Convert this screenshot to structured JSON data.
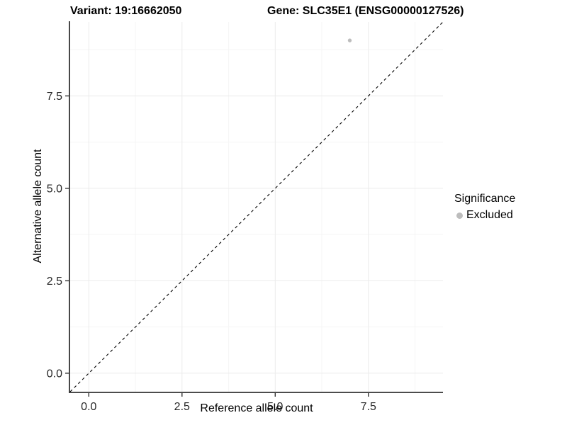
{
  "header": {
    "variant_title": "Variant: 19:16662050",
    "gene_title": "Gene: SLC35E1 (ENSG00000127526)"
  },
  "chart_data": {
    "type": "scatter",
    "xlabel": "Reference allele count",
    "ylabel": "Alternative allele count",
    "xlim": [
      -0.5,
      9.5
    ],
    "ylim": [
      -0.5,
      9.5
    ],
    "x_ticks": {
      "values": [
        0,
        2.5,
        5,
        7.5
      ],
      "labels": [
        "0.0",
        "2.5",
        "5.0",
        "7.5"
      ]
    },
    "y_ticks": {
      "values": [
        0,
        2.5,
        5,
        7.5
      ],
      "labels": [
        "0.0",
        "2.5",
        "5.0",
        "7.5"
      ]
    },
    "minor_gridlines": [
      1.25,
      3.75,
      6.25,
      8.75
    ],
    "grid": "major+minor",
    "reference_line": {
      "kind": "identity",
      "style": "dashed",
      "from": [
        -0.5,
        -0.5
      ],
      "to": [
        9.5,
        9.5
      ]
    },
    "series": [
      {
        "name": "Excluded",
        "color": "#bdbdbd",
        "points": [
          {
            "x": 7,
            "y": 9
          }
        ]
      }
    ],
    "legend": {
      "title": "Significance",
      "position": "right",
      "items": [
        {
          "label": "Excluded",
          "color": "#bdbdbd"
        }
      ]
    }
  },
  "colors": {
    "background": "#ffffff",
    "point": "#bdbdbd",
    "axis_line": "#333333",
    "tick_text": "#262626",
    "grid_major": "#ebebeb",
    "grid_minor": "#f5f5f5",
    "reference_line": "#000000"
  }
}
